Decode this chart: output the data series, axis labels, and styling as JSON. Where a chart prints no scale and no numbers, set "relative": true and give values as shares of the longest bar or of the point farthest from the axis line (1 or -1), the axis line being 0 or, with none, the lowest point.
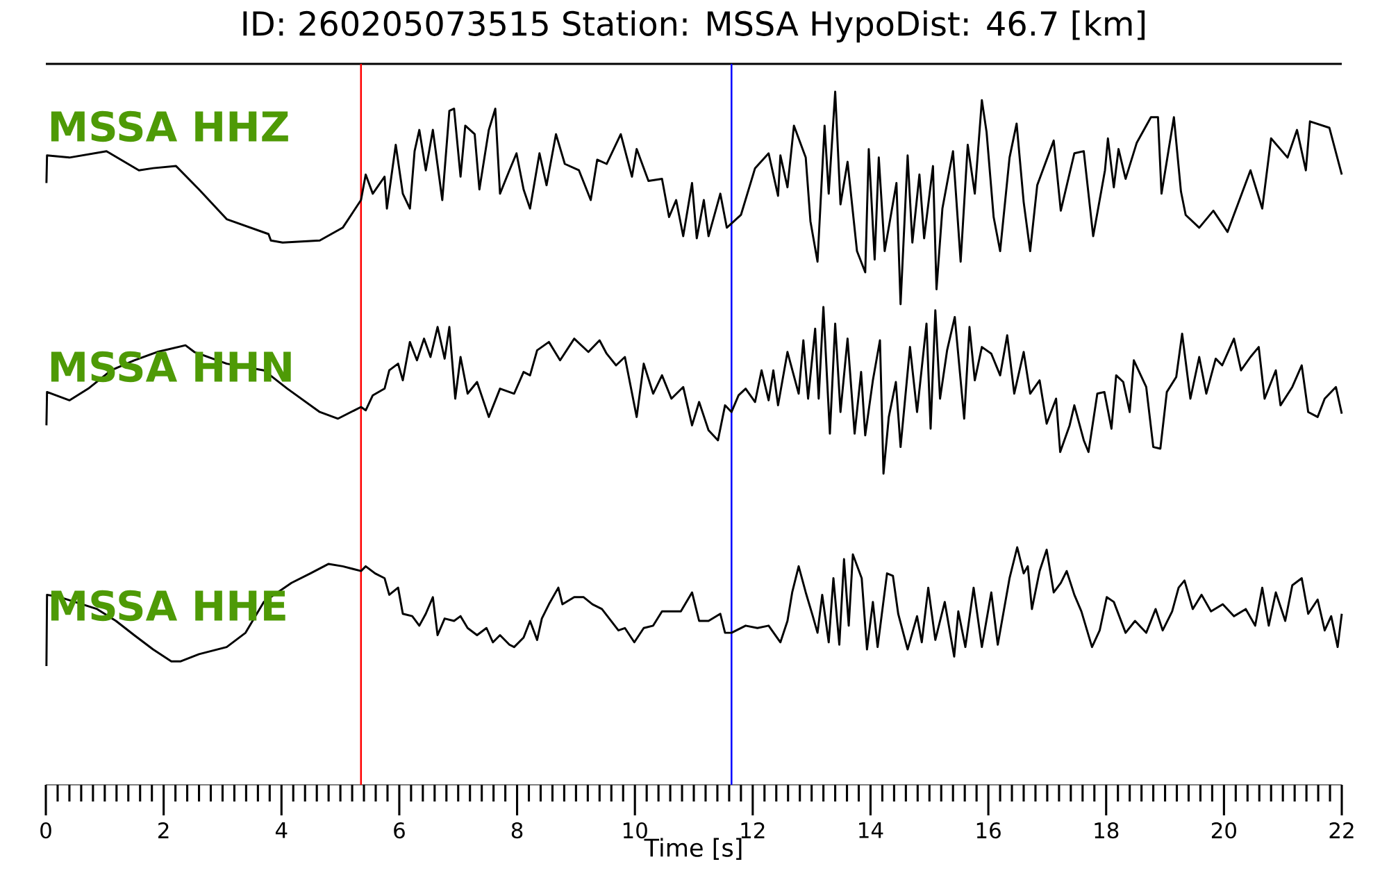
{
  "chart_data": [
    {
      "type": "line",
      "relative": true,
      "title": "ID: 260205073515   Station: MSSA   HypoDist:    46.7 [km]",
      "annotations": [
        "MSSA HHZ"
      ],
      "xlim": [
        0,
        22
      ],
      "tick_labels": false,
      "ref_lines": [
        {
          "axis": "x",
          "value": 5.35,
          "color": "#ff0000"
        },
        {
          "axis": "x",
          "value": 11.64,
          "color": "#0000ff"
        }
      ],
      "series": [
        {
          "color": "#000000",
          "x": [
            0.01,
            0.02,
            0.4,
            1.03,
            1.58,
            1.82,
            2.21,
            2.6,
            3.07,
            3.78,
            3.82,
            4.02,
            4.65,
            5.04,
            5.35,
            5.43,
            5.55,
            5.75,
            5.79,
            5.94,
            6.06,
            6.18,
            6.26,
            6.34,
            6.45,
            6.57,
            6.73,
            6.85,
            6.93,
            7.04,
            7.12,
            7.28,
            7.36,
            7.52,
            7.63,
            7.71,
            7.87,
            7.99,
            8.11,
            8.22,
            8.38,
            8.5,
            8.66,
            8.81,
            9.05,
            9.25,
            9.36,
            9.52,
            9.76,
            9.95,
            10.03,
            10.23,
            10.46,
            10.58,
            10.7,
            10.82,
            10.97,
            11.05,
            11.17,
            11.25,
            11.45,
            11.56,
            11.8,
            12.04,
            12.27,
            12.43,
            12.47,
            12.59,
            12.7,
            12.9,
            12.98,
            13.1,
            13.22,
            13.29,
            13.4,
            13.49,
            13.61,
            13.77,
            13.91,
            13.97,
            14.07,
            14.14,
            14.24,
            14.44,
            14.51,
            14.63,
            14.71,
            14.83,
            14.91,
            15.06,
            15.12,
            15.22,
            15.4,
            15.53,
            15.65,
            15.77,
            15.89,
            15.97,
            16.09,
            16.2,
            16.36,
            16.48,
            16.6,
            16.71,
            16.83,
            17.11,
            17.23,
            17.46,
            17.62,
            17.78,
            17.98,
            18.03,
            18.13,
            18.21,
            18.33,
            18.52,
            18.76,
            18.88,
            18.94,
            19.15,
            19.27,
            19.35,
            19.58,
            19.82,
            20.06,
            20.45,
            20.65,
            20.8,
            21.08,
            21.24,
            21.39,
            21.46,
            21.79,
            22.0
          ],
          "values": [
            0.57,
            0.7,
            0.69,
            0.72,
            0.63,
            0.64,
            0.65,
            0.54,
            0.4,
            0.33,
            0.3,
            0.29,
            0.3,
            0.36,
            0.49,
            0.61,
            0.52,
            0.6,
            0.45,
            0.75,
            0.52,
            0.45,
            0.72,
            0.82,
            0.63,
            0.82,
            0.49,
            0.91,
            0.92,
            0.6,
            0.84,
            0.8,
            0.54,
            0.82,
            0.92,
            0.52,
            0.63,
            0.71,
            0.54,
            0.45,
            0.71,
            0.56,
            0.8,
            0.66,
            0.63,
            0.49,
            0.68,
            0.66,
            0.8,
            0.6,
            0.73,
            0.58,
            0.59,
            0.41,
            0.49,
            0.32,
            0.57,
            0.31,
            0.49,
            0.32,
            0.52,
            0.36,
            0.42,
            0.64,
            0.71,
            0.51,
            0.7,
            0.55,
            0.84,
            0.69,
            0.39,
            0.2,
            0.84,
            0.52,
            1.0,
            0.47,
            0.67,
            0.25,
            0.15,
            0.73,
            0.21,
            0.69,
            0.25,
            0.57,
            0.0,
            0.7,
            0.29,
            0.61,
            0.31,
            0.65,
            0.07,
            0.45,
            0.72,
            0.2,
            0.75,
            0.52,
            0.96,
            0.81,
            0.41,
            0.25,
            0.69,
            0.85,
            0.48,
            0.25,
            0.56,
            0.77,
            0.44,
            0.71,
            0.72,
            0.32,
            0.63,
            0.78,
            0.55,
            0.73,
            0.59,
            0.76,
            0.88,
            0.88,
            0.52,
            0.88,
            0.53,
            0.42,
            0.36,
            0.44,
            0.34,
            0.63,
            0.45,
            0.78,
            0.69,
            0.82,
            0.63,
            0.86,
            0.83,
            0.61
          ]
        }
      ]
    },
    {
      "type": "line",
      "relative": true,
      "annotations": [
        "MSSA HHN"
      ],
      "xlim": [
        0,
        22
      ],
      "tick_labels": false,
      "ref_lines": [
        {
          "axis": "x",
          "value": 5.35,
          "color": "#ff0000"
        },
        {
          "axis": "x",
          "value": 11.64,
          "color": "#0000ff"
        }
      ],
      "series": [
        {
          "color": "#000000",
          "x": [
            0.01,
            0.02,
            0.4,
            0.72,
            1.11,
            1.5,
            1.89,
            2.37,
            2.52,
            3.07,
            3.7,
            4.1,
            4.65,
            4.96,
            5.35,
            5.43,
            5.55,
            5.75,
            5.83,
            5.98,
            6.06,
            6.18,
            6.3,
            6.42,
            6.53,
            6.65,
            6.77,
            6.85,
            6.95,
            7.04,
            7.16,
            7.32,
            7.52,
            7.71,
            7.95,
            8.11,
            8.22,
            8.34,
            8.54,
            8.73,
            8.97,
            9.21,
            9.4,
            9.52,
            9.68,
            9.83,
            10.03,
            10.15,
            10.31,
            10.46,
            10.62,
            10.82,
            10.97,
            11.09,
            11.25,
            11.41,
            11.53,
            11.64,
            11.76,
            11.88,
            12.04,
            12.15,
            12.27,
            12.35,
            12.43,
            12.59,
            12.78,
            12.86,
            12.94,
            13.06,
            13.12,
            13.2,
            13.31,
            13.4,
            13.49,
            13.61,
            13.73,
            13.84,
            13.91,
            14.04,
            14.16,
            14.22,
            14.31,
            14.43,
            14.51,
            14.67,
            14.79,
            14.95,
            15.02,
            15.1,
            15.18,
            15.3,
            15.43,
            15.59,
            15.68,
            15.77,
            15.89,
            16.05,
            16.2,
            16.32,
            16.44,
            16.6,
            16.71,
            16.87,
            16.99,
            17.15,
            17.22,
            17.38,
            17.46,
            17.62,
            17.7,
            17.85,
            17.97,
            18.09,
            18.17,
            18.29,
            18.4,
            18.47,
            18.68,
            18.8,
            18.92,
            19.03,
            19.19,
            19.29,
            19.43,
            19.58,
            19.7,
            19.86,
            19.97,
            20.17,
            20.29,
            20.45,
            20.59,
            20.69,
            20.88,
            20.96,
            21.16,
            21.32,
            21.43,
            21.59,
            21.71,
            21.9,
            22.0
          ],
          "values": [
            0.29,
            0.49,
            0.44,
            0.51,
            0.62,
            0.68,
            0.73,
            0.77,
            0.73,
            0.66,
            0.62,
            0.51,
            0.37,
            0.33,
            0.4,
            0.38,
            0.47,
            0.51,
            0.62,
            0.66,
            0.56,
            0.79,
            0.68,
            0.81,
            0.7,
            0.88,
            0.69,
            0.88,
            0.45,
            0.7,
            0.48,
            0.55,
            0.34,
            0.51,
            0.48,
            0.61,
            0.59,
            0.74,
            0.79,
            0.68,
            0.81,
            0.73,
            0.8,
            0.72,
            0.65,
            0.7,
            0.34,
            0.66,
            0.48,
            0.59,
            0.45,
            0.52,
            0.29,
            0.43,
            0.26,
            0.2,
            0.41,
            0.37,
            0.47,
            0.51,
            0.43,
            0.62,
            0.44,
            0.62,
            0.41,
            0.73,
            0.48,
            0.8,
            0.45,
            0.87,
            0.45,
            1.0,
            0.24,
            0.9,
            0.37,
            0.81,
            0.24,
            0.61,
            0.23,
            0.56,
            0.8,
            0.0,
            0.34,
            0.55,
            0.16,
            0.76,
            0.37,
            0.9,
            0.27,
            0.98,
            0.45,
            0.74,
            0.94,
            0.33,
            0.88,
            0.56,
            0.76,
            0.72,
            0.59,
            0.83,
            0.48,
            0.73,
            0.48,
            0.56,
            0.3,
            0.45,
            0.13,
            0.29,
            0.41,
            0.2,
            0.13,
            0.48,
            0.49,
            0.27,
            0.59,
            0.55,
            0.37,
            0.68,
            0.52,
            0.16,
            0.15,
            0.49,
            0.58,
            0.84,
            0.45,
            0.7,
            0.48,
            0.69,
            0.65,
            0.81,
            0.62,
            0.7,
            0.76,
            0.45,
            0.62,
            0.41,
            0.52,
            0.65,
            0.37,
            0.34,
            0.45,
            0.52,
            0.36
          ]
        }
      ]
    },
    {
      "type": "line",
      "relative": true,
      "annotations": [
        "MSSA HHE"
      ],
      "xlabel": "Time [s]",
      "xlim": [
        0,
        22
      ],
      "xticks": [
        0,
        2,
        4,
        6,
        8,
        10,
        12,
        14,
        16,
        18,
        20,
        22
      ],
      "tick_labels": "x",
      "ref_lines": [
        {
          "axis": "x",
          "value": 5.35,
          "color": "#ff0000"
        },
        {
          "axis": "x",
          "value": 11.64,
          "color": "#0000ff"
        }
      ],
      "series": [
        {
          "color": "#000000",
          "x": [
            0.01,
            0.02,
            0.24,
            0.87,
            1.19,
            1.5,
            1.82,
            2.13,
            2.29,
            2.6,
            3.07,
            3.39,
            3.7,
            4.17,
            4.49,
            4.8,
            5.04,
            5.35,
            5.43,
            5.59,
            5.75,
            5.83,
            5.98,
            6.06,
            6.22,
            6.34,
            6.45,
            6.57,
            6.65,
            6.77,
            6.93,
            7.04,
            7.16,
            7.32,
            7.48,
            7.59,
            7.71,
            7.87,
            7.95,
            8.11,
            8.22,
            8.34,
            8.42,
            8.54,
            8.7,
            8.77,
            8.97,
            9.13,
            9.28,
            9.44,
            9.72,
            9.83,
            9.99,
            10.15,
            10.31,
            10.46,
            10.78,
            10.97,
            11.09,
            11.25,
            11.45,
            11.53,
            11.64,
            11.88,
            12.08,
            12.27,
            12.47,
            12.59,
            12.67,
            12.78,
            12.9,
            13.02,
            13.1,
            13.18,
            13.29,
            13.37,
            13.47,
            13.55,
            13.63,
            13.7,
            13.85,
            13.94,
            14.04,
            14.12,
            14.28,
            14.38,
            14.47,
            14.63,
            14.79,
            14.87,
            14.98,
            15.1,
            15.26,
            15.42,
            15.49,
            15.61,
            15.75,
            15.89,
            16.05,
            16.16,
            16.36,
            16.49,
            16.6,
            16.67,
            16.74,
            16.87,
            16.99,
            17.11,
            17.23,
            17.33,
            17.46,
            17.58,
            17.76,
            17.89,
            18.01,
            18.13,
            18.33,
            18.49,
            18.68,
            18.84,
            18.96,
            19.12,
            19.23,
            19.33,
            19.47,
            19.62,
            19.78,
            19.98,
            20.17,
            20.37,
            20.53,
            20.65,
            20.76,
            20.88,
            21.04,
            21.16,
            21.32,
            21.43,
            21.59,
            21.71,
            21.82,
            21.93,
            22.0
          ],
          "values": [
            0.5,
            0.8,
            0.79,
            0.74,
            0.69,
            0.63,
            0.57,
            0.52,
            0.52,
            0.55,
            0.58,
            0.64,
            0.77,
            0.85,
            0.89,
            0.93,
            0.92,
            0.9,
            0.92,
            0.89,
            0.87,
            0.8,
            0.83,
            0.72,
            0.71,
            0.67,
            0.72,
            0.79,
            0.63,
            0.7,
            0.69,
            0.71,
            0.66,
            0.63,
            0.66,
            0.6,
            0.63,
            0.59,
            0.58,
            0.62,
            0.69,
            0.61,
            0.7,
            0.76,
            0.83,
            0.76,
            0.79,
            0.79,
            0.76,
            0.74,
            0.65,
            0.66,
            0.6,
            0.66,
            0.67,
            0.73,
            0.73,
            0.81,
            0.69,
            0.69,
            0.72,
            0.64,
            0.64,
            0.67,
            0.66,
            0.67,
            0.6,
            0.69,
            0.81,
            0.92,
            0.81,
            0.71,
            0.64,
            0.8,
            0.6,
            0.87,
            0.59,
            0.95,
            0.67,
            0.97,
            0.87,
            0.57,
            0.77,
            0.58,
            0.89,
            0.88,
            0.72,
            0.57,
            0.71,
            0.6,
            0.83,
            0.61,
            0.77,
            0.54,
            0.73,
            0.58,
            0.83,
            0.58,
            0.81,
            0.59,
            0.87,
            1.0,
            0.89,
            0.92,
            0.74,
            0.9,
            0.99,
            0.81,
            0.85,
            0.9,
            0.8,
            0.73,
            0.58,
            0.65,
            0.79,
            0.77,
            0.64,
            0.69,
            0.64,
            0.74,
            0.65,
            0.73,
            0.83,
            0.86,
            0.74,
            0.8,
            0.73,
            0.76,
            0.71,
            0.74,
            0.67,
            0.83,
            0.67,
            0.81,
            0.69,
            0.84,
            0.87,
            0.72,
            0.78,
            0.65,
            0.71,
            0.58,
            0.72
          ]
        }
      ]
    }
  ]
}
